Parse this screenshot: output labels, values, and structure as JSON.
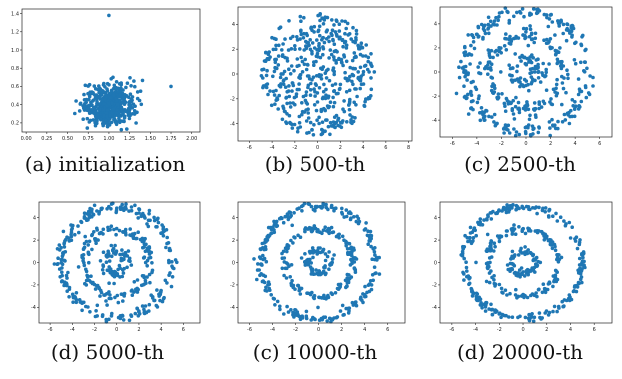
{
  "colors": {
    "point": "#1f77b4",
    "frame": "#222222"
  },
  "chart_data": [
    {
      "type": "scatter",
      "caption": "(a) initialization",
      "xlim": [
        -0.05,
        2.1
      ],
      "ylim": [
        0.1,
        1.45
      ],
      "xticks": [
        "0.00",
        "0.25",
        "0.50",
        "0.75",
        "1.00",
        "1.25",
        "1.50",
        "1.75",
        "2.00"
      ],
      "xtick_values": [
        0,
        0.25,
        0.5,
        0.75,
        1,
        1.25,
        1.5,
        1.75,
        2
      ],
      "yticks": [
        "0.2",
        "0.4",
        "0.6",
        "0.8",
        "1.0",
        "1.2",
        "1.4"
      ],
      "ytick_values": [
        0.2,
        0.4,
        0.6,
        0.8,
        1.0,
        1.2,
        1.4
      ],
      "distribution": "gaussian blob centered near (1.0, 0.4), std ~0.15, one outlier at (1.0, 1.38)",
      "points": 500
    },
    {
      "type": "scatter",
      "caption": "(b) 500-th",
      "xlim": [
        -7,
        8.3
      ],
      "ylim": [
        -5.4,
        5.4
      ],
      "xticks": [
        "-6",
        "-4",
        "-2",
        "0",
        "2",
        "4",
        "6",
        "8"
      ],
      "xtick_values": [
        -6,
        -4,
        -2,
        0,
        2,
        4,
        6,
        8
      ],
      "yticks": [
        "-4",
        "-2",
        "0",
        "2",
        "4"
      ],
      "ytick_values": [
        -4,
        -2,
        0,
        2,
        4
      ],
      "distribution": "points filling a disc of radius ~5",
      "points": 500
    },
    {
      "type": "scatter",
      "caption": "(c) 2500-th",
      "xlim": [
        -7,
        7
      ],
      "ylim": [
        -5.4,
        5.4
      ],
      "xticks": [
        "-6",
        "-4",
        "-2",
        "0",
        "2",
        "4",
        "6"
      ],
      "xtick_values": [
        -6,
        -4,
        -2,
        0,
        2,
        4,
        6
      ],
      "yticks": [
        "-4",
        "-2",
        "0",
        "2",
        "4"
      ],
      "ytick_values": [
        -4,
        -2,
        0,
        2,
        4
      ],
      "distribution": "three concentric rings (radii ~5, ~3, ~1), loosely formed",
      "points": 500
    },
    {
      "type": "scatter",
      "caption": "(d) 5000-th",
      "xlim": [
        -7,
        7.5
      ],
      "ylim": [
        -5.4,
        5.4
      ],
      "xticks": [
        "-6",
        "-4",
        "-2",
        "0",
        "2",
        "4",
        "6"
      ],
      "xtick_values": [
        -6,
        -4,
        -2,
        0,
        2,
        4,
        6
      ],
      "yticks": [
        "-4",
        "-2",
        "0",
        "2",
        "4"
      ],
      "ytick_values": [
        -4,
        -2,
        0,
        2,
        4
      ],
      "distribution": "three concentric rings (radii ~5, ~3, ~1)",
      "points": 500
    },
    {
      "type": "scatter",
      "caption": "(c) 10000-th",
      "xlim": [
        -7,
        7.5
      ],
      "ylim": [
        -5.4,
        5.4
      ],
      "xticks": [
        "-6",
        "-4",
        "-2",
        "0",
        "2",
        "4",
        "6"
      ],
      "xtick_values": [
        -6,
        -4,
        -2,
        0,
        2,
        4,
        6
      ],
      "yticks": [
        "-4",
        "-2",
        "0",
        "2",
        "4"
      ],
      "ytick_values": [
        -4,
        -2,
        0,
        2,
        4
      ],
      "distribution": "three concentric rings (radii ~5, ~3, ~1), tighter",
      "points": 500
    },
    {
      "type": "scatter",
      "caption": "(d) 20000-th",
      "xlim": [
        -7,
        7.5
      ],
      "ylim": [
        -5.4,
        5.4
      ],
      "xticks": [
        "-6",
        "-4",
        "-2",
        "0",
        "2",
        "4",
        "6"
      ],
      "xtick_values": [
        -6,
        -4,
        -2,
        0,
        2,
        4,
        6
      ],
      "yticks": [
        "-4",
        "-2",
        "0",
        "2",
        "4"
      ],
      "ytick_values": [
        -4,
        -2,
        0,
        2,
        4
      ],
      "distribution": "three concentric rings (radii ~5, ~3, ~1), well separated",
      "points": 500
    }
  ]
}
